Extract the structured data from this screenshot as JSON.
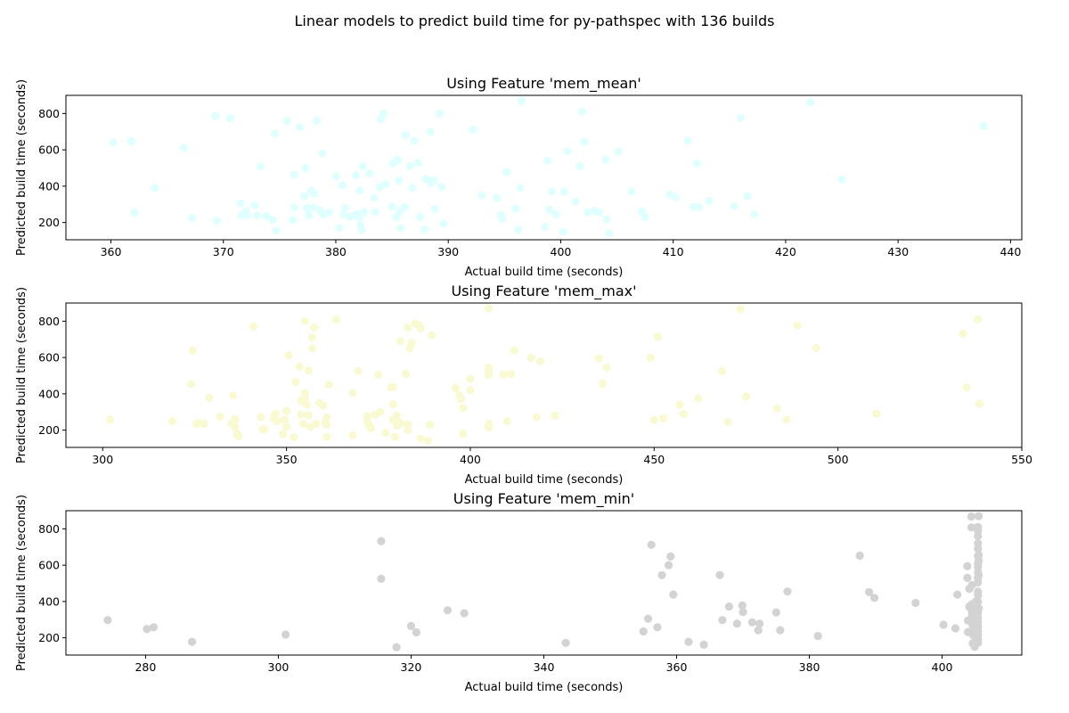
{
  "figure": {
    "title": "Linear models to predict build time for py-pathspec with 136 builds"
  },
  "chart_data": [
    {
      "type": "scatter",
      "title": "Using Feature 'mem_mean'",
      "xlabel": "Actual build time (seconds)",
      "ylabel": "Predicted build time (seconds)",
      "xlim": [
        356,
        441
      ],
      "ylim": [
        105,
        900
      ],
      "xticks": [
        360,
        370,
        380,
        390,
        400,
        410,
        420,
        430,
        440
      ],
      "yticks": [
        200,
        400,
        600,
        800
      ],
      "color": "#e0ffff",
      "points": [
        [
          360.2,
          640
        ],
        [
          361.8,
          648
        ],
        [
          362.1,
          255
        ],
        [
          363.9,
          390
        ],
        [
          366.5,
          612
        ],
        [
          367.2,
          225
        ],
        [
          369.3,
          785
        ],
        [
          369.4,
          210
        ],
        [
          370.6,
          775
        ],
        [
          371.5,
          305
        ],
        [
          371.6,
          240
        ],
        [
          372.0,
          262
        ],
        [
          372.1,
          240
        ],
        [
          372.8,
          295
        ],
        [
          373.0,
          240
        ],
        [
          373.3,
          508
        ],
        [
          373.8,
          235
        ],
        [
          374.4,
          215
        ],
        [
          374.6,
          690
        ],
        [
          374.7,
          155
        ],
        [
          375.7,
          760
        ],
        [
          376.2,
          215
        ],
        [
          376.3,
          462
        ],
        [
          376.3,
          282
        ],
        [
          376.8,
          725
        ],
        [
          377.2,
          345
        ],
        [
          377.3,
          500
        ],
        [
          377.4,
          280
        ],
        [
          377.6,
          240
        ],
        [
          377.8,
          375
        ],
        [
          378.0,
          282
        ],
        [
          378.1,
          358
        ],
        [
          378.3,
          760
        ],
        [
          378.6,
          265
        ],
        [
          378.8,
          580
        ],
        [
          378.9,
          245
        ],
        [
          379.4,
          255
        ],
        [
          380.0,
          455
        ],
        [
          380.3,
          170
        ],
        [
          380.6,
          405
        ],
        [
          380.7,
          245
        ],
        [
          380.8,
          280
        ],
        [
          381.3,
          232
        ],
        [
          381.5,
          235
        ],
        [
          381.8,
          460
        ],
        [
          381.9,
          245
        ],
        [
          382.1,
          230
        ],
        [
          382.1,
          375
        ],
        [
          382.2,
          185
        ],
        [
          382.3,
          158
        ],
        [
          382.4,
          510
        ],
        [
          382.5,
          255
        ],
        [
          383.0,
          470
        ],
        [
          383.4,
          335
        ],
        [
          383.5,
          258
        ],
        [
          383.9,
          395
        ],
        [
          384.0,
          770
        ],
        [
          384.2,
          800
        ],
        [
          384.4,
          410
        ],
        [
          385.0,
          288
        ],
        [
          385.1,
          525
        ],
        [
          385.4,
          230
        ],
        [
          385.5,
          545
        ],
        [
          385.6,
          430
        ],
        [
          385.7,
          260
        ],
        [
          385.8,
          168
        ],
        [
          386.1,
          285
        ],
        [
          386.2,
          682
        ],
        [
          386.6,
          510
        ],
        [
          386.8,
          390
        ],
        [
          387.0,
          650
        ],
        [
          387.3,
          528
        ],
        [
          387.5,
          230
        ],
        [
          387.9,
          162
        ],
        [
          388.0,
          440
        ],
        [
          388.4,
          700
        ],
        [
          388.5,
          418
        ],
        [
          388.7,
          432
        ],
        [
          388.8,
          275
        ],
        [
          389.2,
          800
        ],
        [
          389.4,
          395
        ],
        [
          389.6,
          195
        ],
        [
          392.2,
          712
        ],
        [
          393.0,
          350
        ],
        [
          394.3,
          335
        ],
        [
          394.7,
          242
        ],
        [
          394.8,
          222
        ],
        [
          395.2,
          478
        ],
        [
          396.0,
          275
        ],
        [
          396.2,
          160
        ],
        [
          396.4,
          390
        ],
        [
          396.5,
          870
        ],
        [
          398.6,
          175
        ],
        [
          398.8,
          540
        ],
        [
          399.0,
          270
        ],
        [
          399.2,
          370
        ],
        [
          399.6,
          245
        ],
        [
          400.2,
          150
        ],
        [
          400.3,
          370
        ],
        [
          400.6,
          592
        ],
        [
          401.3,
          315
        ],
        [
          401.7,
          510
        ],
        [
          401.9,
          810
        ],
        [
          402.1,
          645
        ],
        [
          402.4,
          255
        ],
        [
          403.0,
          265
        ],
        [
          403.4,
          255
        ],
        [
          404.0,
          545
        ],
        [
          404.1,
          218
        ],
        [
          404.3,
          140
        ],
        [
          405.1,
          590
        ],
        [
          406.3,
          370
        ],
        [
          407.2,
          260
        ],
        [
          407.5,
          230
        ],
        [
          409.7,
          355
        ],
        [
          410.2,
          340
        ],
        [
          411.3,
          650
        ],
        [
          411.8,
          285
        ],
        [
          412.1,
          525
        ],
        [
          412.3,
          285
        ],
        [
          413.2,
          320
        ],
        [
          415.4,
          290
        ],
        [
          416.0,
          775
        ],
        [
          416.6,
          345
        ],
        [
          417.2,
          245
        ],
        [
          422.2,
          862
        ],
        [
          425.0,
          438
        ],
        [
          437.6,
          732
        ]
      ]
    },
    {
      "type": "scatter",
      "title": "Using Feature 'mem_max'",
      "xlabel": "Actual build time (seconds)",
      "ylabel": "Predicted build time (seconds)",
      "xlim": [
        290,
        550
      ],
      "ylim": [
        105,
        900
      ],
      "xticks": [
        300,
        350,
        400,
        450,
        500,
        550
      ],
      "yticks": [
        200,
        400,
        600,
        800
      ],
      "color": "#fafad2",
      "points": [
        [
          302,
          258
        ],
        [
          319,
          250
        ],
        [
          324,
          455
        ],
        [
          324.5,
          640
        ],
        [
          325.5,
          235
        ],
        [
          326,
          238
        ],
        [
          327.5,
          235
        ],
        [
          329,
          378
        ],
        [
          332,
          275
        ],
        [
          335,
          235
        ],
        [
          335.5,
          390
        ],
        [
          336,
          260
        ],
        [
          336,
          218
        ],
        [
          336.5,
          180
        ],
        [
          337,
          165
        ],
        [
          341,
          770
        ],
        [
          343,
          272
        ],
        [
          343.5,
          205
        ],
        [
          344,
          205
        ],
        [
          346.5,
          265
        ],
        [
          347,
          290
        ],
        [
          347.5,
          250
        ],
        [
          349,
          178
        ],
        [
          349.5,
          258
        ],
        [
          350,
          305
        ],
        [
          350,
          218
        ],
        [
          350.5,
          612
        ],
        [
          352,
          160
        ],
        [
          352.5,
          465
        ],
        [
          353.5,
          550
        ],
        [
          354,
          362
        ],
        [
          354,
          285
        ],
        [
          354.5,
          235
        ],
        [
          355,
          380
        ],
        [
          355,
          405
        ],
        [
          355,
          800
        ],
        [
          355.5,
          340
        ],
        [
          356,
          528
        ],
        [
          356,
          282
        ],
        [
          356.5,
          218
        ],
        [
          357,
          650
        ],
        [
          357,
          710
        ],
        [
          357.5,
          765
        ],
        [
          358,
          235
        ],
        [
          359,
          350
        ],
        [
          360,
          335
        ],
        [
          360.5,
          245
        ],
        [
          361,
          230
        ],
        [
          361,
          270
        ],
        [
          361,
          162
        ],
        [
          361.5,
          450
        ],
        [
          363.5,
          808
        ],
        [
          368,
          405
        ],
        [
          368,
          172
        ],
        [
          369.5,
          525
        ],
        [
          372,
          278
        ],
        [
          372,
          252
        ],
        [
          372.5,
          225
        ],
        [
          373,
          210
        ],
        [
          374,
          285
        ],
        [
          375,
          505
        ],
        [
          375.5,
          300
        ],
        [
          377,
          185
        ],
        [
          378.5,
          435
        ],
        [
          379,
          342
        ],
        [
          379,
          438
        ],
        [
          379,
          258
        ],
        [
          379.5,
          162
        ],
        [
          380,
          280
        ],
        [
          380,
          225
        ],
        [
          381,
          240
        ],
        [
          381,
          690
        ],
        [
          382.5,
          510
        ],
        [
          383,
          765
        ],
        [
          383,
          232
        ],
        [
          383,
          200
        ],
        [
          383.5,
          650
        ],
        [
          384,
          680
        ],
        [
          385,
          788
        ],
        [
          386,
          778
        ],
        [
          386.5,
          760
        ],
        [
          386.5,
          155
        ],
        [
          388.5,
          142
        ],
        [
          389,
          230
        ],
        [
          389.5,
          722
        ],
        [
          396,
          432
        ],
        [
          397,
          392
        ],
        [
          397.5,
          372
        ],
        [
          398,
          180
        ],
        [
          398,
          322
        ],
        [
          400,
          482
        ],
        [
          400,
          420
        ],
        [
          405,
          870
        ],
        [
          405,
          530
        ],
        [
          405,
          545
        ],
        [
          405,
          505
        ],
        [
          405,
          235
        ],
        [
          405,
          215
        ],
        [
          409,
          505
        ],
        [
          410,
          250
        ],
        [
          411,
          510
        ],
        [
          412,
          640
        ],
        [
          416.5,
          598
        ],
        [
          418,
          272
        ],
        [
          419,
          580
        ],
        [
          423,
          280
        ],
        [
          435,
          595
        ],
        [
          436,
          455
        ],
        [
          437,
          545
        ],
        [
          449,
          598
        ],
        [
          450,
          255
        ],
        [
          451,
          715
        ],
        [
          452.5,
          265
        ],
        [
          457,
          340
        ],
        [
          458,
          290
        ],
        [
          462,
          375
        ],
        [
          468.5,
          525
        ],
        [
          470,
          245
        ],
        [
          473.5,
          865
        ],
        [
          475,
          385
        ],
        [
          483.5,
          320
        ],
        [
          486,
          258
        ],
        [
          489,
          778
        ],
        [
          494,
          652
        ],
        [
          510.5,
          290
        ],
        [
          534,
          732
        ],
        [
          535,
          435
        ],
        [
          538,
          810
        ],
        [
          538.5,
          345
        ]
      ]
    },
    {
      "type": "scatter",
      "title": "Using Feature 'mem_min'",
      "xlabel": "Actual build time (seconds)",
      "ylabel": "Predicted build time (seconds)",
      "xlim": [
        268,
        412
      ],
      "ylim": [
        105,
        900
      ],
      "xticks": [
        280,
        300,
        320,
        340,
        360,
        380,
        400
      ],
      "yticks": [
        200,
        400,
        600,
        800
      ],
      "color": "#d3d3d3",
      "points": [
        [
          274.3,
          298
        ],
        [
          280.2,
          248
        ],
        [
          281.2,
          258
        ],
        [
          287,
          178
        ],
        [
          301.1,
          218
        ],
        [
          315.5,
          732
        ],
        [
          315.5,
          525
        ],
        [
          317.8,
          148
        ],
        [
          320,
          265
        ],
        [
          320.8,
          230
        ],
        [
          325.5,
          352
        ],
        [
          328,
          335
        ],
        [
          343.3,
          172
        ],
        [
          355,
          235
        ],
        [
          355.7,
          305
        ],
        [
          356.2,
          712
        ],
        [
          357.1,
          258
        ],
        [
          357.8,
          545
        ],
        [
          358.8,
          600
        ],
        [
          359.1,
          648
        ],
        [
          359.5,
          438
        ],
        [
          361.8,
          178
        ],
        [
          364.1,
          162
        ],
        [
          366.5,
          545
        ],
        [
          366.9,
          298
        ],
        [
          367.9,
          372
        ],
        [
          369.1,
          278
        ],
        [
          369.9,
          378
        ],
        [
          370,
          342
        ],
        [
          371.4,
          285
        ],
        [
          372.3,
          242
        ],
        [
          372.5,
          278
        ],
        [
          375,
          340
        ],
        [
          375.6,
          242
        ],
        [
          376.7,
          455
        ],
        [
          381.3,
          210
        ],
        [
          387.6,
          652
        ],
        [
          389,
          452
        ],
        [
          389.8,
          420
        ],
        [
          396,
          392
        ],
        [
          400.2,
          272
        ],
        [
          402,
          252
        ],
        [
          402.3,
          438
        ],
        [
          403.8,
          595
        ],
        [
          403.8,
          530
        ],
        [
          403.9,
          295
        ],
        [
          403.9,
          232
        ],
        [
          404.1,
          372
        ],
        [
          404.1,
          470
        ],
        [
          404.2,
          365
        ],
        [
          404.4,
          868
        ],
        [
          404.4,
          808
        ],
        [
          404.5,
          490
        ],
        [
          404.5,
          385
        ],
        [
          404.5,
          335
        ],
        [
          404.5,
          312
        ],
        [
          404.6,
          268
        ],
        [
          404.6,
          218
        ],
        [
          404.6,
          170
        ],
        [
          404.7,
          290
        ],
        [
          404.8,
          265
        ],
        [
          404.8,
          245
        ],
        [
          404.8,
          225
        ],
        [
          404.9,
          150
        ],
        [
          404.9,
          345
        ],
        [
          405.0,
          200
        ],
        [
          405.0,
          182
        ],
        [
          405.1,
          400
        ],
        [
          405.2,
          250
        ],
        [
          405.2,
          290
        ],
        [
          405.3,
          232
        ],
        [
          405.4,
          810
        ],
        [
          405.4,
          790
        ],
        [
          405.4,
          760
        ],
        [
          405.4,
          720
        ],
        [
          405.4,
          690
        ],
        [
          405.4,
          650
        ],
        [
          405.4,
          610
        ],
        [
          405.4,
          590
        ],
        [
          405.4,
          560
        ],
        [
          405.4,
          530
        ],
        [
          405.4,
          505
        ],
        [
          405.4,
          455
        ],
        [
          405.4,
          435
        ],
        [
          405.4,
          398
        ],
        [
          405.4,
          335
        ],
        [
          405.4,
          310
        ],
        [
          405.4,
          285
        ],
        [
          405.4,
          260
        ],
        [
          405.4,
          240
        ],
        [
          405.4,
          215
        ],
        [
          405.4,
          195
        ],
        [
          405.4,
          172
        ],
        [
          405.5,
          870
        ],
        [
          405.5,
          655
        ],
        [
          405.5,
          625
        ],
        [
          405.5,
          545
        ],
        [
          405.5,
          362
        ]
      ]
    }
  ]
}
